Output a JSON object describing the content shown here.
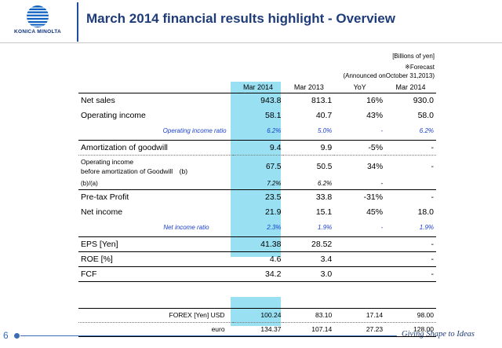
{
  "brand": {
    "name": "KONICA MINOLTA",
    "colors": {
      "primary": "#1f3c7a",
      "highlight": "#99e0f3",
      "ratio_text": "#1a3fcf"
    }
  },
  "slide": {
    "title": "March 2014 financial results highlight - Overview",
    "units": "[Billions of yen]",
    "forecast_note": "※Forecast",
    "announced_note": "(Announced onOctober 31,2013)",
    "page_number": "6",
    "tagline": "Giving Shape to Ideas"
  },
  "table": {
    "headers": [
      "",
      "Mar 2014",
      "Mar 2013",
      "YoY",
      "Mar 2014"
    ],
    "rows": {
      "net_sales": [
        "Net sales",
        "943.8",
        "813.1",
        "16%",
        "930.0"
      ],
      "operating_income": [
        "Operating income",
        "58.1",
        "40.7",
        "43%",
        "58.0"
      ],
      "operating_income_ratio": [
        "Operating income ratio",
        "6.2%",
        "5.0%",
        "-",
        "6.2%"
      ],
      "amortization": [
        "Amortization of goodwill",
        "9.4",
        "9.9",
        "-5%",
        "-"
      ],
      "oi_before_amort_line1": "Operating income",
      "oi_before_amort_line2": "before amortization of Goodwill　(b)",
      "oi_before_amort": [
        "67.5",
        "50.5",
        "34%",
        "-"
      ],
      "b_over_a": [
        "(b)/(a)",
        "7.2%",
        "6.2%",
        "-",
        ""
      ],
      "pretax": [
        "Pre-tax Profit",
        "23.5",
        "33.8",
        "-31%",
        "-"
      ],
      "net_income": [
        "Net income",
        "21.9",
        "15.1",
        "45%",
        "18.0"
      ],
      "net_income_ratio": [
        "Net income ratio",
        "2.3%",
        "1.9%",
        "-",
        "1.9%"
      ],
      "eps": [
        "EPS  [Yen]",
        "41.38",
        "28.52",
        "",
        "-"
      ],
      "roe": [
        "ROE [%]",
        "4.6",
        "3.4",
        "",
        "-"
      ],
      "fcf": [
        "FCF",
        "34.2",
        "3.0",
        "",
        "-"
      ],
      "forex_usd": [
        "FOREX  [Yen]  USD",
        "100.24",
        "83.10",
        "17.14",
        "98.00"
      ],
      "forex_euro": [
        "euro",
        "134.37",
        "107.14",
        "27.23",
        "128.00"
      ]
    }
  }
}
